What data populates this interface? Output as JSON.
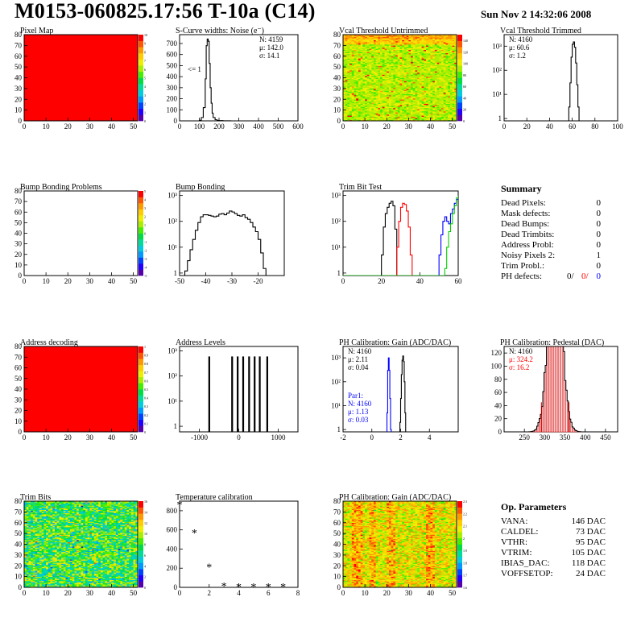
{
  "header": {
    "title": "M0153-060825.17:56 T-10a (C14)",
    "date": "Sun Nov  2 14:32:06 2008"
  },
  "chart_data": [
    {
      "id": "pixel_map",
      "type": "heatmap",
      "title": "Pixel Map",
      "xlim": [
        0,
        52
      ],
      "ylim": [
        0,
        80
      ],
      "xticks": [
        0,
        10,
        20,
        30,
        40,
        50
      ],
      "yticks": [
        0,
        10,
        20,
        30,
        40,
        50,
        60,
        70,
        80
      ],
      "z_range": [
        0,
        10
      ],
      "zticks": [
        0,
        1,
        2,
        3,
        4,
        5,
        6,
        7,
        8,
        9,
        10
      ],
      "fill": "uniform",
      "value": 10
    },
    {
      "id": "scurve_noise",
      "type": "line",
      "title": "S-Curve widths: Noise (e⁻)",
      "xlim": [
        0,
        600
      ],
      "xticks": [
        0,
        100,
        200,
        300,
        400,
        500,
        600
      ],
      "ylim": [
        0,
        780
      ],
      "yticks": [
        0,
        100,
        200,
        300,
        400,
        500,
        600,
        700
      ],
      "log": false,
      "annotation": "<= 1",
      "stats": [
        "N: 4159",
        "μ: 142.0",
        "σ: 14.1"
      ],
      "series": [
        {
          "color": "#000000",
          "x": [
            90,
            100,
            110,
            120,
            130,
            135,
            140,
            145,
            150,
            155,
            160,
            165,
            170,
            180,
            190,
            200,
            220,
            240,
            260
          ],
          "y": [
            0,
            5,
            30,
            120,
            380,
            680,
            740,
            720,
            520,
            300,
            160,
            70,
            30,
            10,
            4,
            2,
            1,
            1,
            0
          ]
        }
      ]
    },
    {
      "id": "vcal_untrimmed",
      "type": "heatmap",
      "title": "Vcal Threshold Untrimmed",
      "xlim": [
        0,
        52
      ],
      "ylim": [
        0,
        80
      ],
      "xticks": [
        0,
        10,
        20,
        30,
        40,
        50
      ],
      "yticks": [
        0,
        10,
        20,
        30,
        40,
        50,
        60,
        70,
        80
      ],
      "z_range": [
        0,
        150
      ],
      "zticks": [
        0,
        20,
        40,
        60,
        80,
        100,
        120,
        140
      ],
      "fill": "noise-yellow"
    },
    {
      "id": "vcal_trimmed",
      "type": "line",
      "title": "Vcal Threshold Trimmed",
      "xlim": [
        0,
        100
      ],
      "xticks": [
        0,
        20,
        40,
        60,
        80,
        100
      ],
      "ylim": [
        0.8,
        3000
      ],
      "yticks": [
        1,
        10,
        100,
        1000
      ],
      "log": true,
      "stats": [
        "N: 4160",
        "μ: 60.6",
        "σ:  1.2"
      ],
      "series": [
        {
          "color": "#000000",
          "x": [
            56,
            57,
            58,
            59,
            60,
            61,
            62,
            63,
            64,
            65,
            66
          ],
          "y": [
            0.8,
            3,
            30,
            350,
            1200,
            1500,
            900,
            200,
            25,
            3,
            0.8
          ]
        }
      ]
    },
    {
      "id": "bump_problems",
      "type": "heatmap",
      "title": "Bump Bonding Problems",
      "xlim": [
        0,
        52
      ],
      "ylim": [
        0,
        80
      ],
      "xticks": [
        0,
        10,
        20,
        30,
        40,
        50
      ],
      "yticks": [
        0,
        10,
        20,
        30,
        40,
        50,
        60,
        70,
        80
      ],
      "z_range": [
        -5,
        5
      ],
      "zticks": [
        -5,
        -4,
        -3,
        -2,
        -1,
        0,
        1,
        2,
        3,
        4,
        5
      ],
      "fill": "empty"
    },
    {
      "id": "bump_bonding",
      "type": "line",
      "title": "Bump Bonding",
      "xlim": [
        -50,
        -10
      ],
      "xticks": [
        -50,
        -40,
        -30,
        -20
      ],
      "ylim": [
        0.8,
        1500
      ],
      "yticks": [
        1,
        10,
        100,
        1000
      ],
      "log": true,
      "series": [
        {
          "color": "#000000",
          "x": [
            -49,
            -48,
            -47,
            -46,
            -45,
            -44,
            -43,
            -42,
            -41,
            -40,
            -39,
            -38,
            -37,
            -36,
            -35,
            -34,
            -33,
            -32,
            -31,
            -30,
            -29,
            -28,
            -27,
            -26,
            -25,
            -24,
            -23,
            -22,
            -21,
            -20,
            -19,
            -18,
            -17
          ],
          "y": [
            0.8,
            1.2,
            3,
            8,
            20,
            45,
            90,
            150,
            180,
            180,
            170,
            160,
            150,
            160,
            190,
            200,
            180,
            210,
            250,
            230,
            200,
            170,
            160,
            180,
            140,
            120,
            90,
            60,
            40,
            20,
            6,
            1.5,
            0.8
          ]
        }
      ]
    },
    {
      "id": "trim_bit_test",
      "type": "line",
      "title": "Trim Bit Test",
      "xlim": [
        0,
        60
      ],
      "xticks": [
        0,
        20,
        40,
        60
      ],
      "ylim": [
        0.8,
        1500
      ],
      "yticks": [
        1,
        10,
        100,
        1000
      ],
      "log": true,
      "series": [
        {
          "color": "#000000",
          "x": [
            19,
            20,
            21,
            22,
            23,
            24,
            25,
            26,
            27,
            28
          ],
          "y": [
            0.8,
            5,
            60,
            200,
            350,
            500,
            600,
            400,
            50,
            0.8
          ]
        },
        {
          "color": "#ff0000",
          "x": [
            27,
            28,
            29,
            30,
            31,
            32,
            33,
            34,
            35,
            36
          ],
          "y": [
            0.8,
            10,
            100,
            350,
            500,
            450,
            250,
            60,
            5,
            0.8
          ]
        },
        {
          "color": "#0000ff",
          "x": [
            49,
            50,
            51,
            52,
            53,
            54,
            55,
            56,
            57,
            58,
            59,
            60
          ],
          "y": [
            0.8,
            5,
            30,
            100,
            150,
            100,
            80,
            200,
            300,
            500,
            700,
            900
          ]
        },
        {
          "color": "#00cc00",
          "x": [
            0,
            48,
            49,
            50,
            51,
            52,
            53,
            54,
            55,
            56,
            57,
            58,
            59,
            60
          ],
          "y": [
            0.8,
            0.8,
            0.8,
            0.8,
            0.8,
            0.8,
            1.5,
            10,
            40,
            80,
            200,
            400,
            800,
            1000
          ]
        }
      ]
    },
    {
      "id": "address_decoding",
      "type": "heatmap",
      "title": "Address decoding",
      "xlim": [
        0,
        52
      ],
      "ylim": [
        0,
        80
      ],
      "xticks": [
        0,
        10,
        20,
        30,
        40,
        50
      ],
      "yticks": [
        0,
        10,
        20,
        30,
        40,
        50,
        60,
        70,
        80
      ],
      "z_range": [
        0,
        1
      ],
      "zticks": [
        0,
        0.1,
        0.2,
        0.3,
        0.4,
        0.5,
        0.6,
        0.7,
        0.8,
        0.9,
        1
      ],
      "fill": "uniform",
      "value": 1
    },
    {
      "id": "address_levels",
      "type": "line",
      "title": "Address Levels",
      "xlim": [
        -1500,
        1500
      ],
      "xticks": [
        -1000,
        0,
        1000
      ],
      "ylim": [
        0.6,
        1500
      ],
      "yticks": [
        1,
        10,
        100,
        1000
      ],
      "log": true,
      "spikes": [
        -750,
        -170,
        -30,
        110,
        260,
        400,
        530,
        720
      ],
      "spike_height": 600
    },
    {
      "id": "ph_gain",
      "type": "line",
      "title": "PH Calibration: Gain (ADC/DAC)",
      "xlim": [
        -2,
        6
      ],
      "xticks": [
        -2,
        0,
        2,
        4
      ],
      "ylim": [
        0.8,
        3000
      ],
      "yticks": [
        1,
        10,
        100,
        1000
      ],
      "log": true,
      "stats": [
        "N: 4160",
        "μ: 2.11",
        "σ: 0.04"
      ],
      "stats2_title": "Par1:",
      "stats2": [
        "N: 4160",
        "μ: 1.13",
        "σ: 0.03"
      ],
      "series": [
        {
          "color": "#000000",
          "x": [
            1.9,
            1.95,
            2.0,
            2.05,
            2.1,
            2.15,
            2.2,
            2.25,
            2.3,
            2.35
          ],
          "y": [
            0.8,
            2,
            20,
            200,
            800,
            1200,
            700,
            100,
            5,
            0.8
          ]
        },
        {
          "color": "#0000ff",
          "x": [
            1.0,
            1.05,
            1.1,
            1.15,
            1.2,
            1.25,
            1.3,
            1.35
          ],
          "y": [
            0.8,
            5,
            300,
            1000,
            300,
            20,
            1,
            0.8
          ]
        }
      ]
    },
    {
      "id": "ph_pedestal",
      "type": "bar",
      "title": "PH Calibration: Pedestal (DAC)",
      "xlim": [
        200,
        480
      ],
      "xticks": [
        250,
        300,
        350,
        400,
        450
      ],
      "ylim": [
        0,
        130
      ],
      "yticks": [
        0,
        20,
        40,
        60,
        80,
        100,
        120
      ],
      "log": false,
      "stats": [
        "N: 4160",
        "μ: 324.2",
        "σ: 16.2"
      ],
      "stats_colors": [
        "#000000",
        "#ff0000",
        "#ff0000"
      ],
      "mean": 324.2,
      "sigma": 16.2,
      "count": 4160,
      "fit_markers": [
        292,
        360
      ],
      "stats_box": "top-left"
    },
    {
      "id": "trim_bits",
      "type": "heatmap",
      "title": "Trim Bits",
      "xlim": [
        0,
        52
      ],
      "ylim": [
        0,
        80
      ],
      "xticks": [
        0,
        10,
        20,
        30,
        40,
        50
      ],
      "yticks": [
        0,
        10,
        20,
        30,
        40,
        50,
        60,
        70,
        80
      ],
      "z_range": [
        0,
        16
      ],
      "zticks": [
        0,
        2,
        4,
        6,
        8,
        10,
        12,
        14,
        16
      ],
      "fill": "noise-trim"
    },
    {
      "id": "temperature",
      "type": "scatter",
      "title": "Temperature calibration",
      "xlim": [
        0,
        8
      ],
      "xticks": [
        0,
        2,
        4,
        6,
        8
      ],
      "ylim": [
        0,
        900
      ],
      "yticks": [
        0,
        200,
        400,
        600,
        800
      ],
      "marker": "*",
      "x": [
        0,
        1,
        2,
        3,
        4,
        5,
        6,
        7
      ],
      "y": [
        865,
        570,
        215,
        15,
        10,
        10,
        10,
        10
      ]
    },
    {
      "id": "ph_gain_map",
      "type": "heatmap",
      "title": "PH Calibration: Gain (ADC/DAC)",
      "xlim": [
        0,
        52
      ],
      "ylim": [
        0,
        80
      ],
      "xticks": [
        0,
        10,
        20,
        30,
        40,
        50
      ],
      "yticks": [
        0,
        10,
        20,
        30,
        40,
        50,
        60,
        70,
        80
      ],
      "z_range": [
        1.6,
        2.3
      ],
      "zticks": [
        1.6,
        1.7,
        1.8,
        1.9,
        2,
        2.1,
        2.2,
        2.3
      ],
      "fill": "noise-gain"
    }
  ],
  "summary": {
    "title": "Summary",
    "rows": [
      {
        "label": "Dead Pixels:",
        "value": "0"
      },
      {
        "label": "Mask defects:",
        "value": "0"
      },
      {
        "label": "Dead Bumps:",
        "value": "0"
      },
      {
        "label": "Dead Trimbits:",
        "value": "0"
      },
      {
        "label": "Address Probl:",
        "value": "0"
      },
      {
        "label": "Noisy Pixels 2:",
        "value": "1"
      },
      {
        "label": "Trim Probl.:",
        "value": "0"
      }
    ],
    "ph_label": "PH defects:",
    "ph_values": [
      "0/",
      "0/",
      "0"
    ],
    "ph_colors": [
      "#000000",
      "#ff0000",
      "#0000ff"
    ]
  },
  "op_params": {
    "title": "Op. Parameters",
    "rows": [
      {
        "label": "VANA:",
        "value": "146 DAC"
      },
      {
        "label": "CALDEL:",
        "value": "73 DAC"
      },
      {
        "label": "VTHR:",
        "value": "95 DAC"
      },
      {
        "label": "VTRIM:",
        "value": "105 DAC"
      },
      {
        "label": "IBIAS_DAC:",
        "value": "118 DAC"
      },
      {
        "label": "VOFFSETOP:",
        "value": "24 DAC"
      }
    ]
  }
}
